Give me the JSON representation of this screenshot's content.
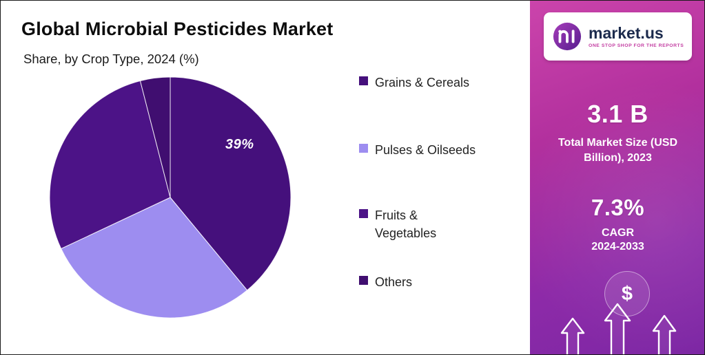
{
  "header": {
    "title": "Global Microbial Pesticides Market",
    "subtitle": "Share, by Crop Type, 2024 (%)"
  },
  "chart_data": {
    "type": "pie",
    "title": "Global Microbial Pesticides Market — Share, by Crop Type, 2024 (%)",
    "categories": [
      "Grains & Cereals",
      "Pulses & Oilseeds",
      "Fruits & Vegetables",
      "Others"
    ],
    "values": [
      39,
      29,
      28,
      4
    ],
    "unit": "%",
    "colors": [
      "#45107c",
      "#9d8df0",
      "#4c1387",
      "#400e70"
    ],
    "start_angle_deg": -90,
    "direction": "clockwise",
    "legend_position": "right",
    "data_labels": [
      {
        "category": "Grains & Cereals",
        "text": "39%"
      }
    ]
  },
  "sidebar": {
    "brand": {
      "name": "market.us",
      "tagline": "ONE STOP SHOP FOR THE REPORTS"
    },
    "market_size": {
      "value": "3.1 B",
      "label": "Total Market Size (USD Billion), 2023"
    },
    "cagr": {
      "value": "7.3%",
      "label": "CAGR",
      "period": "2024-2033"
    },
    "icons": [
      "dollar-icon",
      "growth-arrows-icon"
    ],
    "accent_color": "#b2309e"
  }
}
